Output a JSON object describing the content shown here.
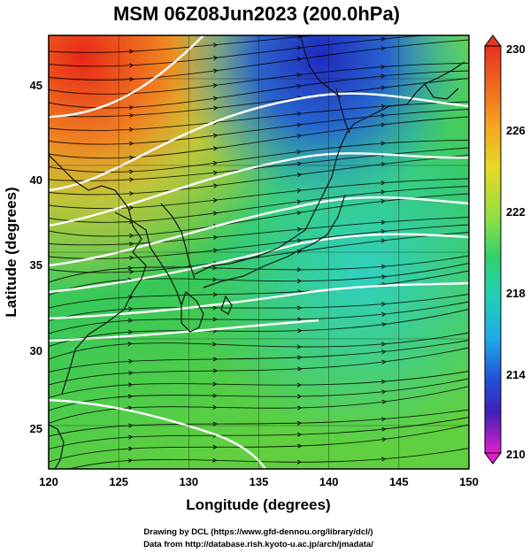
{
  "title": "MSM 06Z08Jun2023 (200.0hPa)",
  "x_axis": {
    "label": "Longitude (degrees)",
    "ticks": [
      "120",
      "125",
      "130",
      "135",
      "140",
      "145",
      "150"
    ]
  },
  "y_axis": {
    "label": "Latitude  (degrees)",
    "ticks": [
      "25",
      "30",
      "35",
      "40",
      "45"
    ]
  },
  "colorbar": {
    "ticks": [
      "230",
      "226",
      "222",
      "218",
      "214",
      "210"
    ],
    "colors": [
      "#e02020",
      "#f07a10",
      "#f0c020",
      "#c8e030",
      "#40d060",
      "#20c8b0",
      "#20a0e8",
      "#2040d0",
      "#6020b0",
      "#e020c0"
    ]
  },
  "credits": {
    "line1": "Drawing by DCL (https://www.gfd-dennou.org/library/dcl/)",
    "line2": "Data from http://database.rish.kyoto-u.ac.jp/arch/jmadata/"
  },
  "chart_data": {
    "type": "heatmap",
    "title": "MSM 06Z08Jun2023 (200.0hPa)",
    "xlabel": "Longitude (degrees)",
    "ylabel": "Latitude  (degrees)",
    "xlim": [
      120,
      150
    ],
    "ylim": [
      22.5,
      47.5
    ],
    "colorbar_range": [
      210,
      230
    ],
    "colorbar_ticks": [
      230,
      226,
      222,
      218,
      214,
      210
    ],
    "grid": true
  }
}
